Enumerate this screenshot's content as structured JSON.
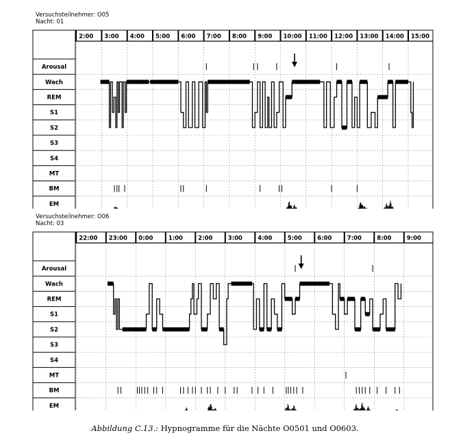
{
  "chart_data": [
    {
      "type": "hypnogram",
      "header": {
        "subject": "Versuchsteilnehmer: O05",
        "night": "Nacht: 01"
      },
      "time_ticks": [
        "2:00",
        "3:00",
        "4:00",
        "5:00",
        "6:00",
        "7:00",
        "8:00",
        "9:00",
        "10:00",
        "11:00",
        "12:00",
        "13:00",
        "14:00",
        "15:00"
      ],
      "rows": [
        "Arousal",
        "Wach",
        "REM",
        "S1",
        "S2",
        "S3",
        "S4",
        "MT",
        "BM",
        "EM"
      ],
      "arrow_hour": 10.55,
      "hypnogram": [
        [
          2.95,
          "Wach"
        ],
        [
          3.3,
          "S2"
        ],
        [
          3.35,
          "Wach"
        ],
        [
          3.42,
          "S1"
        ],
        [
          3.48,
          "REM"
        ],
        [
          3.55,
          "S2"
        ],
        [
          3.6,
          "Wach"
        ],
        [
          3.65,
          "S1"
        ],
        [
          3.7,
          "Wach"
        ],
        [
          3.8,
          "S2"
        ],
        [
          3.85,
          "Wach"
        ],
        [
          3.92,
          "S1"
        ],
        [
          3.97,
          "Wach"
        ],
        [
          4.85,
          "Wach"
        ],
        [
          4.9,
          "Wach"
        ],
        [
          6.0,
          "Wach"
        ],
        [
          6.1,
          "S1"
        ],
        [
          6.2,
          "S2"
        ],
        [
          6.3,
          "Wach"
        ],
        [
          6.4,
          "S2"
        ],
        [
          6.55,
          "Wach"
        ],
        [
          6.65,
          "S2"
        ],
        [
          6.8,
          "Wach"
        ],
        [
          6.95,
          "S2"
        ],
        [
          7.05,
          "Wach"
        ],
        [
          7.1,
          "S1"
        ],
        [
          7.15,
          "Wach"
        ],
        [
          8.8,
          "Wach"
        ],
        [
          8.9,
          "S2"
        ],
        [
          9.0,
          "S1"
        ],
        [
          9.1,
          "Wach"
        ],
        [
          9.2,
          "S2"
        ],
        [
          9.3,
          "Wach"
        ],
        [
          9.4,
          "S2"
        ],
        [
          9.5,
          "REM"
        ],
        [
          9.55,
          "S2"
        ],
        [
          9.65,
          "Wach"
        ],
        [
          9.75,
          "S2"
        ],
        [
          9.85,
          "S1"
        ],
        [
          9.95,
          "Wach"
        ],
        [
          10.1,
          "S2"
        ],
        [
          10.2,
          "REM"
        ],
        [
          10.45,
          "Wach"
        ],
        [
          11.55,
          "Wach"
        ],
        [
          11.7,
          "S2"
        ],
        [
          11.8,
          "Wach"
        ],
        [
          11.95,
          "S2"
        ],
        [
          12.1,
          "REM"
        ],
        [
          12.2,
          "Wach"
        ],
        [
          12.4,
          "S2"
        ],
        [
          12.6,
          "Wach"
        ],
        [
          12.8,
          "S2"
        ],
        [
          12.9,
          "REM"
        ],
        [
          13.0,
          "S2"
        ],
        [
          13.1,
          "Wach"
        ],
        [
          13.4,
          "S2"
        ],
        [
          13.55,
          "S1"
        ],
        [
          13.7,
          "S2"
        ],
        [
          13.8,
          "REM"
        ],
        [
          14.2,
          "Wach"
        ],
        [
          14.4,
          "S2"
        ],
        [
          14.5,
          "Wach"
        ],
        [
          15.0,
          "Wach"
        ],
        [
          15.1,
          "S1"
        ],
        [
          15.15,
          "S2"
        ],
        [
          15.2,
          "Wach"
        ]
      ],
      "arousal_hours": [
        7.1,
        8.95,
        9.1,
        9.85,
        12.2,
        14.25
      ],
      "bm_hours": [
        3.5,
        3.6,
        3.68,
        3.9,
        6.1,
        6.2,
        7.1,
        9.2,
        9.95,
        10.05,
        12.0,
        13.0
      ],
      "em_bursts": [
        [
          3.55,
          0.4
        ],
        [
          10.35,
          0.8
        ],
        [
          10.55,
          0.5
        ],
        [
          13.15,
          0.8
        ],
        [
          13.3,
          0.4
        ],
        [
          14.15,
          0.6
        ],
        [
          14.3,
          0.8
        ]
      ]
    },
    {
      "type": "hypnogram",
      "header": {
        "subject": "Versuchsteilnehmer: O06",
        "night": "Nacht: 03"
      },
      "time_ticks": [
        "22:00",
        "23:00",
        "0:00",
        "1:00",
        "2:00",
        "3:00",
        "4:00",
        "5:00",
        "6:00",
        "7:00",
        "8:00",
        "9:00"
      ],
      "rows": [
        "Arousal",
        "Wach",
        "REM",
        "S1",
        "S2",
        "S3",
        "S4",
        "MT",
        "BM",
        "EM"
      ],
      "arrow_hour": 5.55,
      "hypnogram": [
        [
          -0.95,
          "Wach"
        ],
        [
          -0.75,
          "S1"
        ],
        [
          -0.7,
          "REM"
        ],
        [
          -0.65,
          "S2"
        ],
        [
          -0.6,
          "REM"
        ],
        [
          -0.55,
          "S2"
        ],
        [
          -0.45,
          "S2"
        ],
        [
          0.35,
          "S1"
        ],
        [
          0.45,
          "Wach"
        ],
        [
          0.55,
          "S2"
        ],
        [
          0.7,
          "REM"
        ],
        [
          0.8,
          "S1"
        ],
        [
          0.9,
          "S2"
        ],
        [
          1.8,
          "S1"
        ],
        [
          1.85,
          "REM"
        ],
        [
          1.9,
          "Wach"
        ],
        [
          1.95,
          "S1"
        ],
        [
          2.05,
          "REM"
        ],
        [
          2.1,
          "Wach"
        ],
        [
          2.2,
          "S2"
        ],
        [
          2.4,
          "S1"
        ],
        [
          2.5,
          "Wach"
        ],
        [
          2.6,
          "REM"
        ],
        [
          2.7,
          "Wach"
        ],
        [
          2.8,
          "S2"
        ],
        [
          2.95,
          "S3"
        ],
        [
          3.05,
          "REM"
        ],
        [
          3.1,
          "Wach"
        ],
        [
          3.2,
          "Wach"
        ],
        [
          3.9,
          "Wach"
        ],
        [
          3.95,
          "S2"
        ],
        [
          4.05,
          "REM"
        ],
        [
          4.15,
          "S2"
        ],
        [
          4.3,
          "Wach"
        ],
        [
          4.4,
          "S2"
        ],
        [
          4.55,
          "REM"
        ],
        [
          4.65,
          "S1"
        ],
        [
          4.75,
          "S2"
        ],
        [
          4.9,
          "Wach"
        ],
        [
          5.0,
          "REM"
        ],
        [
          5.25,
          "S1"
        ],
        [
          5.35,
          "REM"
        ],
        [
          5.5,
          "Wach"
        ],
        [
          6.5,
          "Wach"
        ],
        [
          6.6,
          "S1"
        ],
        [
          6.7,
          "S2"
        ],
        [
          6.8,
          "Wach"
        ],
        [
          6.85,
          "REM"
        ],
        [
          7.0,
          "S1"
        ],
        [
          7.1,
          "REM"
        ],
        [
          7.35,
          "S2"
        ],
        [
          7.55,
          "REM"
        ],
        [
          7.7,
          "S1"
        ],
        [
          7.85,
          "REM"
        ],
        [
          7.95,
          "S2"
        ],
        [
          8.2,
          "S1"
        ],
        [
          8.3,
          "REM"
        ],
        [
          8.4,
          "S2"
        ],
        [
          8.7,
          "Wach"
        ],
        [
          8.8,
          "REM"
        ],
        [
          8.9,
          "Wach"
        ]
      ],
      "arousal_hours": [
        5.35,
        7.95
      ],
      "mt_hours": [
        7.05
      ],
      "bm_hours": [
        -0.6,
        -0.5,
        0.05,
        0.12,
        0.2,
        0.3,
        0.4,
        0.6,
        0.7,
        0.9,
        1.5,
        1.6,
        1.75,
        1.9,
        2.0,
        2.2,
        2.4,
        2.5,
        2.75,
        3.0,
        3.3,
        3.4,
        3.9,
        4.1,
        4.3,
        4.6,
        5.05,
        5.12,
        5.2,
        5.3,
        5.4,
        5.6,
        7.4,
        7.5,
        7.6,
        7.7,
        7.85,
        8.1,
        8.4,
        8.7,
        8.85
      ],
      "em_bursts": [
        [
          1.7,
          0.4
        ],
        [
          2.5,
          0.8
        ],
        [
          2.65,
          0.4
        ],
        [
          5.1,
          0.7
        ],
        [
          5.3,
          0.6
        ],
        [
          7.4,
          0.7
        ],
        [
          7.6,
          0.8
        ],
        [
          7.8,
          0.5
        ],
        [
          8.75,
          0.3
        ]
      ]
    }
  ],
  "caption_label": "Abbildung C.13.:",
  "caption_text": " Hypnogramme für die Nächte O0501 und O0603."
}
